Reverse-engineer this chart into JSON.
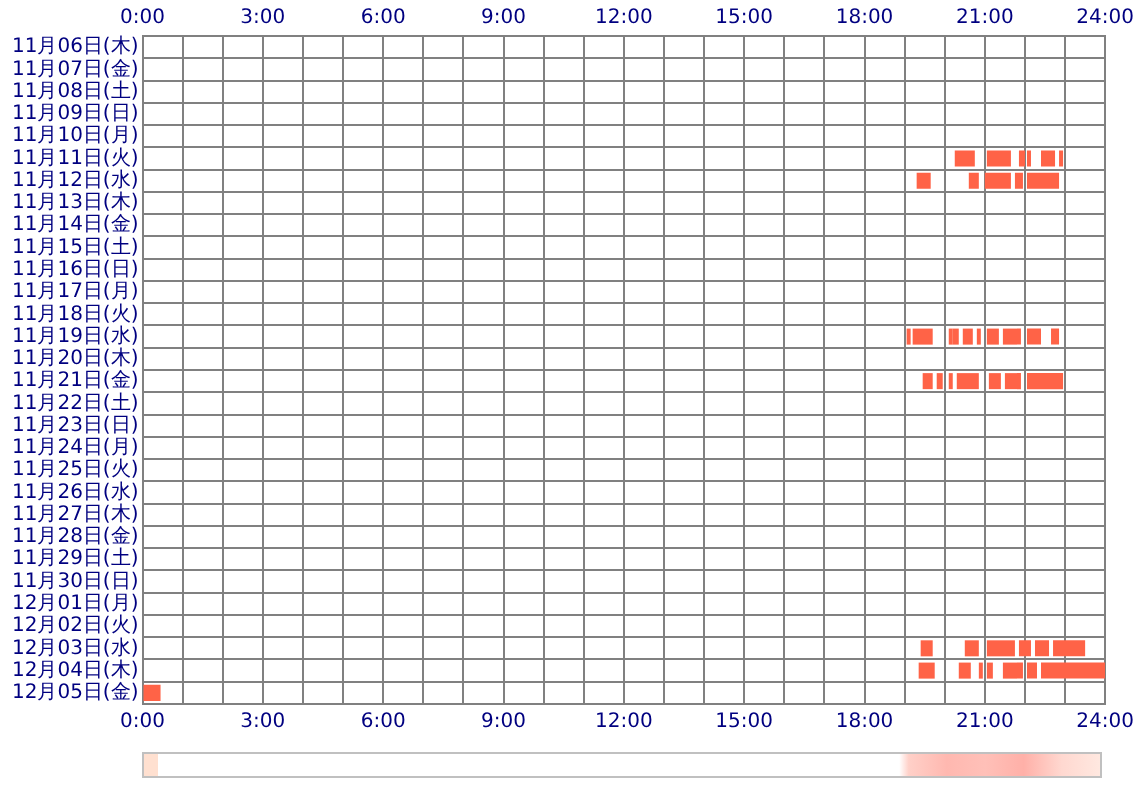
{
  "chart_data": {
    "type": "bar",
    "orientation": "horizontal",
    "grid": true,
    "categories": [
      "11月06日(木)",
      "11月07日(金)",
      "11月08日(土)",
      "11月09日(日)",
      "11月10日(月)",
      "11月11日(火)",
      "11月12日(水)",
      "11月13日(木)",
      "11月14日(金)",
      "11月15日(土)",
      "11月16日(日)",
      "11月17日(月)",
      "11月18日(火)",
      "11月19日(水)",
      "11月20日(木)",
      "11月21日(金)",
      "11月22日(土)",
      "11月23日(日)",
      "11月24日(月)",
      "11月25日(火)",
      "11月26日(水)",
      "11月27日(木)",
      "11月28日(金)",
      "11月29日(土)",
      "11月30日(日)",
      "12月01日(月)",
      "12月02日(火)",
      "12月03日(水)",
      "12月04日(木)",
      "12月05日(金)"
    ],
    "xlim": [
      0,
      24
    ],
    "xticks": [
      {
        "value": 0,
        "label": "0:00"
      },
      {
        "value": 1,
        "label": null
      },
      {
        "value": 2,
        "label": null
      },
      {
        "value": 3,
        "label": "3:00"
      },
      {
        "value": 4,
        "label": null
      },
      {
        "value": 5,
        "label": null
      },
      {
        "value": 6,
        "label": "6:00"
      },
      {
        "value": 7,
        "label": null
      },
      {
        "value": 8,
        "label": null
      },
      {
        "value": 9,
        "label": "9:00"
      },
      {
        "value": 10,
        "label": null
      },
      {
        "value": 11,
        "label": null
      },
      {
        "value": 12,
        "label": "12:00"
      },
      {
        "value": 13,
        "label": null
      },
      {
        "value": 14,
        "label": null
      },
      {
        "value": 15,
        "label": "15:00"
      },
      {
        "value": 16,
        "label": null
      },
      {
        "value": 17,
        "label": null
      },
      {
        "value": 18,
        "label": "18:00"
      },
      {
        "value": 19,
        "label": null
      },
      {
        "value": 20,
        "label": null
      },
      {
        "value": 21,
        "label": "21:00"
      },
      {
        "value": 22,
        "label": null
      },
      {
        "value": 23,
        "label": null
      },
      {
        "value": 24,
        "label": "24:00"
      }
    ],
    "x2lim": [
      0,
      24
    ],
    "x2ticks": [
      {
        "value": 0,
        "label": "0:00"
      },
      {
        "value": 3,
        "label": "3:00"
      },
      {
        "value": 6,
        "label": "6:00"
      },
      {
        "value": 9,
        "label": "9:00"
      },
      {
        "value": 12,
        "label": "12:00"
      },
      {
        "value": 15,
        "label": "15:00"
      },
      {
        "value": 18,
        "label": "18:00"
      },
      {
        "value": 21,
        "label": "21:00"
      },
      {
        "value": 24,
        "label": "24:00"
      }
    ],
    "series": [
      {
        "color": "#ff6347",
        "base": [
          null,
          null,
          null,
          null,
          null,
          20.25,
          19.3,
          null,
          null,
          null,
          null,
          null,
          null,
          19.05,
          null,
          19.45,
          null,
          null,
          null,
          null,
          null,
          null,
          null,
          null,
          null,
          null,
          null,
          19.4,
          19.35,
          0
        ],
        "values": [
          null,
          null,
          null,
          null,
          null,
          0.5,
          0.35,
          null,
          null,
          null,
          null,
          null,
          null,
          0.1,
          null,
          0.25,
          null,
          null,
          null,
          null,
          null,
          null,
          null,
          null,
          null,
          null,
          null,
          0.3,
          0.4,
          0.45
        ]
      },
      {
        "color": "#ff6347",
        "base": [
          null,
          null,
          null,
          null,
          null,
          21.05,
          20.6,
          null,
          null,
          null,
          null,
          null,
          null,
          19.2,
          null,
          19.8,
          null,
          null,
          null,
          null,
          null,
          null,
          null,
          null,
          null,
          null,
          null,
          20.5,
          20.35,
          null
        ],
        "values": [
          null,
          null,
          null,
          null,
          null,
          0.6,
          0.25,
          null,
          null,
          null,
          null,
          null,
          null,
          0.5,
          null,
          0.15,
          null,
          null,
          null,
          null,
          null,
          null,
          null,
          null,
          null,
          null,
          null,
          0.35,
          0.3,
          null
        ]
      },
      {
        "color": "#ff6347",
        "base": [
          null,
          null,
          null,
          null,
          null,
          21.85,
          21.0,
          null,
          null,
          null,
          null,
          null,
          null,
          20.1,
          null,
          20.1,
          null,
          null,
          null,
          null,
          null,
          null,
          null,
          null,
          null,
          null,
          null,
          21.05,
          20.85,
          null
        ],
        "values": [
          null,
          null,
          null,
          null,
          null,
          0.15,
          0.65,
          null,
          null,
          null,
          null,
          null,
          null,
          0.1,
          null,
          0.1,
          null,
          null,
          null,
          null,
          null,
          null,
          null,
          null,
          null,
          null,
          null,
          0.7,
          0.1,
          null
        ]
      },
      {
        "color": "#ff6347",
        "base": [
          null,
          null,
          null,
          null,
          null,
          22.05,
          21.75,
          null,
          null,
          null,
          null,
          null,
          null,
          20.2,
          null,
          20.3,
          null,
          null,
          null,
          null,
          null,
          null,
          null,
          null,
          null,
          null,
          null,
          21.85,
          21.05,
          null
        ],
        "values": [
          null,
          null,
          null,
          null,
          null,
          0.1,
          0.2,
          null,
          null,
          null,
          null,
          null,
          null,
          0.15,
          null,
          0.55,
          null,
          null,
          null,
          null,
          null,
          null,
          null,
          null,
          null,
          null,
          null,
          0.3,
          0.15,
          null
        ]
      },
      {
        "color": "#ff6347",
        "base": [
          null,
          null,
          null,
          null,
          null,
          22.4,
          22.05,
          null,
          null,
          null,
          null,
          null,
          null,
          20.45,
          null,
          21.1,
          null,
          null,
          null,
          null,
          null,
          null,
          null,
          null,
          null,
          null,
          null,
          22.25,
          21.45,
          null
        ],
        "values": [
          null,
          null,
          null,
          null,
          null,
          0.35,
          0.8,
          null,
          null,
          null,
          null,
          null,
          null,
          0.25,
          null,
          0.3,
          null,
          null,
          null,
          null,
          null,
          null,
          null,
          null,
          null,
          null,
          null,
          0.35,
          0.5,
          null
        ]
      },
      {
        "color": "#ff6347",
        "base": [
          null,
          null,
          null,
          null,
          null,
          22.85,
          null,
          null,
          null,
          null,
          null,
          null,
          null,
          20.8,
          null,
          21.5,
          null,
          null,
          null,
          null,
          null,
          null,
          null,
          null,
          null,
          null,
          null,
          22.7,
          22.05,
          null
        ],
        "values": [
          null,
          null,
          null,
          null,
          null,
          0.1,
          null,
          null,
          null,
          null,
          null,
          null,
          null,
          0.1,
          null,
          0.4,
          null,
          null,
          null,
          null,
          null,
          null,
          null,
          null,
          null,
          null,
          null,
          0.8,
          0.25,
          null
        ]
      },
      {
        "color": "#ff6347",
        "base": [
          null,
          null,
          null,
          null,
          null,
          null,
          null,
          null,
          null,
          null,
          null,
          null,
          null,
          21.05,
          null,
          22.05,
          null,
          null,
          null,
          null,
          null,
          null,
          null,
          null,
          null,
          null,
          null,
          null,
          22.4,
          null
        ],
        "values": [
          null,
          null,
          null,
          null,
          null,
          null,
          null,
          null,
          null,
          null,
          null,
          null,
          null,
          0.3,
          null,
          0.9,
          null,
          null,
          null,
          null,
          null,
          null,
          null,
          null,
          null,
          null,
          null,
          null,
          1.6,
          null
        ]
      },
      {
        "color": "#ff6347",
        "base": [
          null,
          null,
          null,
          null,
          null,
          null,
          null,
          null,
          null,
          null,
          null,
          null,
          null,
          21.45,
          null,
          null,
          null,
          null,
          null,
          null,
          null,
          null,
          null,
          null,
          null,
          null,
          null,
          null,
          null,
          null
        ],
        "values": [
          null,
          null,
          null,
          null,
          null,
          null,
          null,
          null,
          null,
          null,
          null,
          null,
          null,
          0.45,
          null,
          null,
          null,
          null,
          null,
          null,
          null,
          null,
          null,
          null,
          null,
          null,
          null,
          null,
          null,
          null
        ]
      },
      {
        "color": "#ff6347",
        "base": [
          null,
          null,
          null,
          null,
          null,
          null,
          null,
          null,
          null,
          null,
          null,
          null,
          null,
          22.05,
          null,
          null,
          null,
          null,
          null,
          null,
          null,
          null,
          null,
          null,
          null,
          null,
          null,
          null,
          null,
          null
        ],
        "values": [
          null,
          null,
          null,
          null,
          null,
          null,
          null,
          null,
          null,
          null,
          null,
          null,
          null,
          0.35,
          null,
          null,
          null,
          null,
          null,
          null,
          null,
          null,
          null,
          null,
          null,
          null,
          null,
          null,
          null,
          null
        ]
      },
      {
        "color": "#ff6347",
        "base": [
          null,
          null,
          null,
          null,
          null,
          null,
          null,
          null,
          null,
          null,
          null,
          null,
          null,
          22.65,
          null,
          null,
          null,
          null,
          null,
          null,
          null,
          null,
          null,
          null,
          null,
          null,
          null,
          null,
          null,
          null
        ],
        "values": [
          null,
          null,
          null,
          null,
          null,
          null,
          null,
          null,
          null,
          null,
          null,
          null,
          null,
          0.2,
          null,
          null,
          null,
          null,
          null,
          null,
          null,
          null,
          null,
          null,
          null,
          null,
          null,
          null,
          null,
          null
        ]
      }
    ]
  }
}
